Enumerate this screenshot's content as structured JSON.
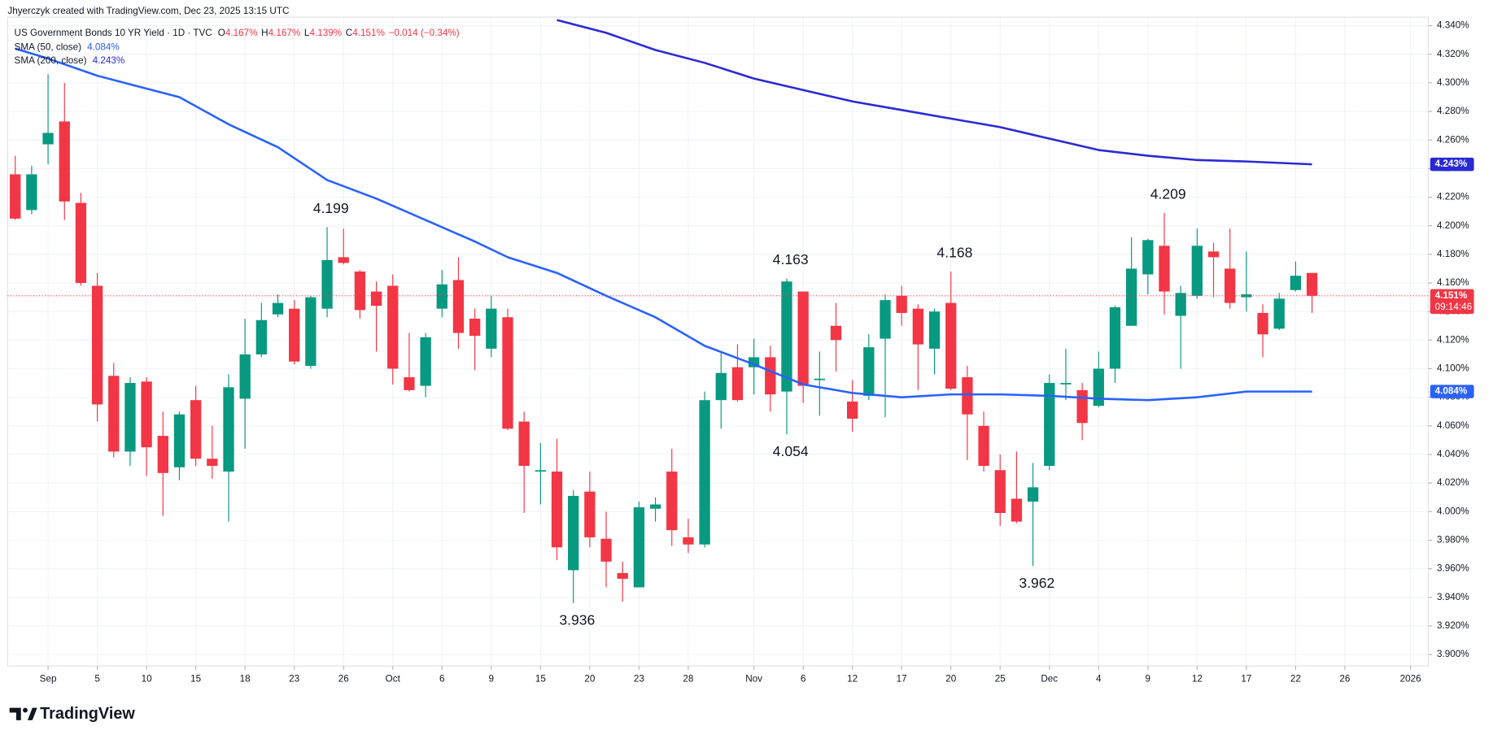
{
  "chart_data": {
    "type": "candlestick",
    "attribution": "Jhyerczyk created with TradingView.com, Dec 23, 2025 13:15 UTC",
    "symbol": "US Government Bonds 10 YR Yield · 1D · TVC",
    "ohlc_legend": [
      {
        "key": "O",
        "value": "4.167%"
      },
      {
        "key": "H",
        "value": "4.167%"
      },
      {
        "key": "L",
        "value": "4.139%"
      },
      {
        "key": "C",
        "value": "4.151%"
      }
    ],
    "change": "−0.014 (−0.34%)",
    "up_color": "#089981",
    "down_color": "#f23645",
    "open": [
      4.236,
      4.211,
      4.257,
      4.273,
      4.216,
      4.158,
      4.095,
      4.042,
      4.091,
      4.053,
      4.031,
      4.078,
      4.037,
      4.028,
      4.079,
      4.11,
      4.138,
      4.142,
      4.102,
      4.142,
      4.178,
      4.168,
      4.154,
      4.158,
      4.094,
      4.088,
      4.142,
      4.162,
      4.135,
      4.114,
      4.136,
      4.063,
      4.028,
      4.028,
      3.959,
      4.014,
      3.981,
      3.957,
      3.947,
      4.002,
      4.028,
      3.982,
      3.977,
      4.078,
      4.101,
      4.101,
      4.108,
      4.084,
      4.154,
      4.092,
      4.13,
      4.077,
      4.081,
      4.121,
      4.151,
      4.142,
      4.114,
      4.146,
      4.094,
      4.06,
      4.029,
      4.009,
      4.007,
      4.032,
      4.089,
      4.085,
      4.074,
      4.1,
      4.13,
      4.166,
      4.186,
      4.137,
      4.151,
      4.182,
      4.17,
      4.15,
      4.139,
      4.128,
      4.155,
      4.167
    ],
    "high": [
      4.249,
      4.242,
      4.306,
      4.3,
      4.223,
      4.167,
      4.104,
      4.094,
      4.094,
      4.07,
      4.07,
      4.088,
      4.06,
      4.096,
      4.135,
      4.146,
      4.152,
      4.148,
      4.151,
      4.199,
      4.198,
      4.169,
      4.161,
      4.166,
      4.125,
      4.125,
      4.169,
      4.178,
      4.142,
      4.151,
      4.142,
      4.07,
      4.048,
      4.051,
      4.015,
      4.028,
      4.0,
      3.965,
      4.007,
      4.01,
      4.044,
      3.995,
      4.084,
      4.112,
      4.117,
      4.121,
      4.116,
      4.163,
      4.154,
      4.112,
      4.146,
      4.092,
      4.124,
      4.152,
      4.158,
      4.145,
      4.142,
      4.168,
      4.102,
      4.07,
      4.04,
      4.042,
      4.034,
      4.096,
      4.114,
      4.09,
      4.112,
      4.144,
      4.192,
      4.191,
      4.209,
      4.158,
      4.198,
      4.188,
      4.198,
      4.182,
      4.145,
      4.153,
      4.175,
      4.167
    ],
    "low": [
      4.204,
      4.208,
      4.243,
      4.204,
      4.158,
      4.063,
      4.038,
      4.032,
      4.025,
      3.997,
      4.022,
      4.032,
      4.023,
      3.993,
      4.044,
      4.108,
      4.136,
      4.103,
      4.1,
      4.136,
      4.173,
      4.135,
      4.112,
      4.089,
      4.084,
      4.08,
      4.136,
      4.114,
      4.099,
      4.108,
      4.057,
      3.999,
      4.005,
      3.966,
      3.936,
      3.975,
      3.947,
      3.937,
      3.947,
      3.993,
      3.976,
      3.971,
      3.975,
      4.058,
      4.077,
      4.082,
      4.07,
      4.054,
      4.076,
      4.067,
      4.098,
      4.056,
      4.078,
      4.066,
      4.13,
      4.085,
      4.096,
      4.085,
      4.036,
      4.028,
      3.99,
      3.992,
      3.962,
      4.029,
      4.078,
      4.05,
      4.073,
      4.09,
      4.13,
      4.152,
      4.138,
      4.1,
      4.149,
      4.15,
      4.142,
      4.14,
      4.108,
      4.127,
      4.154,
      4.139
    ],
    "close": [
      4.205,
      4.236,
      4.265,
      4.217,
      4.16,
      4.075,
      4.042,
      4.09,
      4.045,
      4.027,
      4.068,
      4.037,
      4.032,
      4.087,
      4.11,
      4.134,
      4.146,
      4.105,
      4.15,
      4.176,
      4.174,
      4.141,
      4.144,
      4.1,
      4.085,
      4.122,
      4.159,
      4.125,
      4.123,
      4.142,
      4.058,
      4.032,
      4.029,
      3.975,
      4.011,
      3.982,
      3.965,
      3.953,
      4.003,
      4.005,
      3.987,
      3.977,
      4.078,
      4.097,
      4.078,
      4.108,
      4.082,
      4.161,
      4.088,
      4.093,
      4.12,
      4.065,
      4.115,
      4.148,
      4.139,
      4.117,
      4.14,
      4.086,
      4.068,
      4.032,
      3.999,
      3.993,
      4.017,
      4.09,
      4.09,
      4.062,
      4.1,
      4.143,
      4.17,
      4.19,
      4.154,
      4.153,
      4.186,
      4.178,
      4.146,
      4.152,
      4.124,
      4.149,
      4.165,
      4.151
    ],
    "series": [
      {
        "name": "SMA (50, close)",
        "legend_value": "4.084%",
        "color": "#2962ff",
        "x": [
          0,
          2,
          5,
          8,
          10,
          13,
          16,
          19,
          22,
          25,
          28,
          30,
          33,
          36,
          39,
          42,
          45,
          48,
          51,
          54,
          57,
          60,
          63,
          66,
          69,
          72,
          75,
          79
        ],
        "values": [
          4.324,
          4.317,
          4.305,
          4.296,
          4.29,
          4.271,
          4.255,
          4.232,
          4.219,
          4.204,
          4.189,
          4.178,
          4.167,
          4.151,
          4.136,
          4.116,
          4.103,
          4.089,
          4.083,
          4.08,
          4.082,
          4.082,
          4.081,
          4.079,
          4.078,
          4.08,
          4.084,
          4.084
        ]
      },
      {
        "name": "SMA (200, close)",
        "legend_value": "4.243%",
        "color": "#2a2ad4",
        "x": [
          33,
          36,
          39,
          42,
          45,
          48,
          51,
          54,
          57,
          60,
          63,
          66,
          69,
          72,
          75,
          77,
          79
        ],
        "values": [
          4.344,
          4.335,
          4.323,
          4.314,
          4.303,
          4.295,
          4.287,
          4.281,
          4.275,
          4.269,
          4.261,
          4.253,
          4.249,
          4.246,
          4.245,
          4.244,
          4.243
        ]
      }
    ],
    "annotations": [
      {
        "label": "4.199",
        "value": 4.199,
        "at": "high"
      },
      {
        "label": "4.163",
        "value": 4.163,
        "at": "high"
      },
      {
        "label": "4.168",
        "value": 4.168,
        "at": "high"
      },
      {
        "label": "4.209",
        "value": 4.209,
        "at": "high"
      },
      {
        "label": "4.054",
        "value": 4.054,
        "at": "low"
      },
      {
        "label": "3.936",
        "value": 3.936,
        "at": "low"
      },
      {
        "label": "3.962",
        "value": 3.962,
        "at": "low"
      }
    ],
    "price_tags": [
      {
        "value": 4.243,
        "label": "4.243%",
        "color": "#2a2ad4"
      },
      {
        "value": 4.084,
        "label": "4.084%",
        "color": "#2962ff"
      },
      {
        "value": 4.151,
        "label": "4.151%",
        "color": "#f23645",
        "countdown": "09:14:46",
        "line": "dotted"
      }
    ],
    "xlim": [
      -0.464,
      86.08
    ],
    "xticks": [
      {
        "value": 2,
        "label": "Sep"
      },
      {
        "value": 5,
        "label": "5"
      },
      {
        "value": 8,
        "label": "10"
      },
      {
        "value": 11,
        "label": "15"
      },
      {
        "value": 14,
        "label": "18"
      },
      {
        "value": 17,
        "label": "23"
      },
      {
        "value": 20,
        "label": "26"
      },
      {
        "value": 23,
        "label": "Oct"
      },
      {
        "value": 26,
        "label": "6"
      },
      {
        "value": 29,
        "label": "9"
      },
      {
        "value": 32,
        "label": "15"
      },
      {
        "value": 35,
        "label": "20"
      },
      {
        "value": 38,
        "label": "23"
      },
      {
        "value": 41,
        "label": "28"
      },
      {
        "value": 45,
        "label": "Nov"
      },
      {
        "value": 48,
        "label": "6"
      },
      {
        "value": 51,
        "label": "12"
      },
      {
        "value": 54,
        "label": "17"
      },
      {
        "value": 57,
        "label": "20"
      },
      {
        "value": 60,
        "label": "25"
      },
      {
        "value": 63,
        "label": "Dec"
      },
      {
        "value": 66,
        "label": "4"
      },
      {
        "value": 69,
        "label": "9"
      },
      {
        "value": 72,
        "label": "12"
      },
      {
        "value": 75,
        "label": "17"
      },
      {
        "value": 78,
        "label": "22"
      },
      {
        "value": 81,
        "label": "26"
      },
      {
        "value": 85,
        "label": "2026"
      }
    ],
    "ylim": [
      3.892,
      4.346
    ],
    "yticks": [
      {
        "value": 3.9,
        "label": "3.900%"
      },
      {
        "value": 3.92,
        "label": "3.920%"
      },
      {
        "value": 3.94,
        "label": "3.940%"
      },
      {
        "value": 3.96,
        "label": "3.960%"
      },
      {
        "value": 3.98,
        "label": "3.980%"
      },
      {
        "value": 4.0,
        "label": "4.000%"
      },
      {
        "value": 4.02,
        "label": "4.020%"
      },
      {
        "value": 4.04,
        "label": "4.040%"
      },
      {
        "value": 4.06,
        "label": "4.060%"
      },
      {
        "value": 4.08,
        "label": "4.080%"
      },
      {
        "value": 4.1,
        "label": "4.100%"
      },
      {
        "value": 4.12,
        "label": "4.120%"
      },
      {
        "value": 4.14,
        "label": "4.140%"
      },
      {
        "value": 4.16,
        "label": "4.160%"
      },
      {
        "value": 4.18,
        "label": "4.180%"
      },
      {
        "value": 4.2,
        "label": "4.200%"
      },
      {
        "value": 4.22,
        "label": "4.220%"
      },
      {
        "value": 4.24,
        "label": "4.240%"
      },
      {
        "value": 4.26,
        "label": "4.260%"
      },
      {
        "value": 4.28,
        "label": "4.280%"
      },
      {
        "value": 4.3,
        "label": "4.300%"
      },
      {
        "value": 4.32,
        "label": "4.320%"
      },
      {
        "value": 4.34,
        "label": "4.340%"
      }
    ],
    "grid": true,
    "brand": "TradingView"
  }
}
